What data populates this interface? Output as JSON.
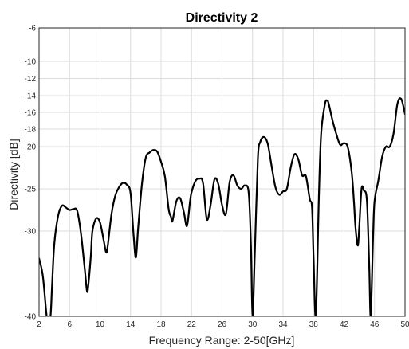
{
  "chart_data": {
    "type": "line",
    "title": "Directivity 2",
    "xlabel": "Frequency Range: 2-50[GHz]",
    "ylabel": "Directivity [dB]",
    "xlim": [
      2,
      50
    ],
    "ylim": [
      -40,
      -6
    ],
    "grid": true,
    "xticks": [
      2,
      6,
      10,
      14,
      18,
      22,
      26,
      30,
      34,
      38,
      42,
      46,
      50
    ],
    "xtick_labels": [
      "2",
      "6",
      "10",
      "14",
      "18",
      "22",
      "26",
      "30",
      "34",
      "38",
      "42",
      "46",
      "50"
    ],
    "yticks": [
      -6,
      -10,
      -12,
      -14,
      -16,
      -18,
      -20,
      -25,
      -30,
      -40
    ],
    "ytick_labels": [
      "-6",
      "-10",
      "-12",
      "-14",
      "-16",
      "-18",
      "-20",
      "-25",
      "-30",
      "-40"
    ],
    "y_tick_spacing": "nonuniform",
    "series": [
      {
        "color": "#000000",
        "x": [
          2.0,
          2.5,
          3.0,
          3.2,
          3.5,
          3.7,
          4.0,
          4.5,
          5.0,
          5.5,
          6.0,
          6.5,
          7.0,
          7.5,
          8.0,
          8.3,
          8.5,
          8.8,
          9.0,
          9.5,
          10.0,
          10.5,
          10.8,
          11.0,
          11.5,
          12.0,
          12.5,
          13.0,
          13.5,
          14.0,
          14.4,
          14.7,
          15.0,
          15.5,
          16.0,
          16.5,
          17.0,
          17.5,
          18.0,
          18.5,
          19.0,
          19.3,
          19.5,
          20.0,
          20.5,
          21.0,
          21.4,
          21.8,
          22.0,
          22.5,
          23.0,
          23.5,
          24.0,
          24.5,
          25.0,
          25.5,
          26.0,
          26.5,
          27.0,
          27.5,
          28.0,
          28.5,
          29.0,
          29.5,
          29.8,
          30.0,
          30.3,
          30.7,
          31.0,
          31.5,
          32.0,
          32.5,
          33.0,
          33.5,
          34.0,
          34.5,
          35.0,
          35.5,
          36.0,
          36.5,
          37.0,
          37.5,
          37.8,
          38.0,
          38.3,
          38.7,
          39.0,
          39.5,
          39.8,
          40.0,
          40.5,
          41.0,
          41.5,
          42.0,
          42.5,
          43.0,
          43.3,
          43.5,
          43.8,
          44.0,
          44.3,
          44.6,
          45.0,
          45.3,
          45.5,
          45.8,
          46.0,
          46.5,
          47.0,
          47.5,
          48.0,
          48.5,
          49.0,
          49.5,
          50.0
        ],
        "y": [
          -33.2,
          -35.3,
          -40.0,
          -40.0,
          -40.0,
          -36.5,
          -31.5,
          -28.2,
          -27.0,
          -27.2,
          -27.5,
          -27.4,
          -27.6,
          -30.3,
          -34.5,
          -37.1,
          -36.0,
          -32.8,
          -30.0,
          -28.5,
          -29.0,
          -31.2,
          -32.5,
          -31.8,
          -28.0,
          -25.8,
          -24.8,
          -24.3,
          -24.5,
          -25.5,
          -30.5,
          -33.1,
          -29.6,
          -24.4,
          -21.3,
          -20.7,
          -20.4,
          -20.6,
          -21.8,
          -23.5,
          -27.4,
          -28.3,
          -28.8,
          -26.5,
          -26.1,
          -27.8,
          -29.4,
          -26.5,
          -25.4,
          -24.1,
          -23.8,
          -24.3,
          -28.6,
          -26.9,
          -23.9,
          -24.4,
          -26.9,
          -28.0,
          -24.2,
          -23.4,
          -24.6,
          -25.0,
          -24.6,
          -25.5,
          -32.0,
          -40.0,
          -32.5,
          -21.4,
          -19.5,
          -18.9,
          -19.7,
          -22.3,
          -24.8,
          -25.7,
          -25.3,
          -25.0,
          -22.5,
          -20.9,
          -21.5,
          -23.4,
          -23.5,
          -26.2,
          -27.2,
          -33.0,
          -40.0,
          -26.0,
          -18.5,
          -15.0,
          -14.6,
          -15.0,
          -17.0,
          -18.6,
          -19.8,
          -19.6,
          -20.1,
          -23.0,
          -26.5,
          -29.5,
          -31.7,
          -29.5,
          -25.0,
          -25.2,
          -26.4,
          -34.0,
          -40.0,
          -31.0,
          -26.5,
          -24.0,
          -21.2,
          -20.0,
          -20.0,
          -18.5,
          -15.0,
          -14.4,
          -16.2
        ]
      }
    ]
  }
}
